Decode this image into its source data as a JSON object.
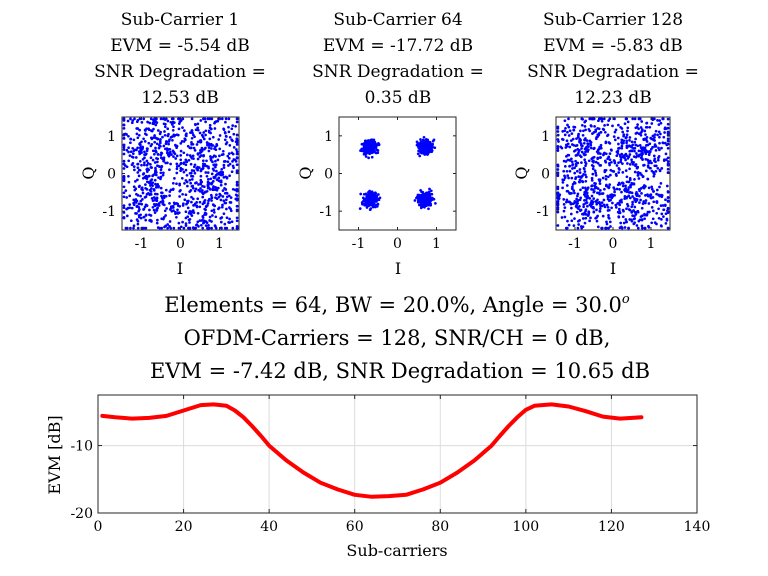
{
  "chart_data": [
    {
      "type": "scatter",
      "panel": "sub-carrier-1",
      "title": [
        "Sub-Carrier 1",
        "EVM = -5.54 dB",
        "SNR Degradation =",
        "12.53 dB"
      ],
      "xlabel": "I",
      "ylabel": "Q",
      "xlim": [
        -1.5,
        1.5
      ],
      "ylim": [
        -1.5,
        1.5
      ],
      "xticks": [
        -1,
        0,
        1
      ],
      "yticks": [
        -1,
        0,
        1
      ],
      "xtick_labels": [
        "-1",
        "0",
        "1"
      ],
      "ytick_labels": [
        "-1",
        "0",
        "1"
      ],
      "constellation": "QPSK",
      "ideal_points": [
        [
          -0.707,
          0.707
        ],
        [
          0.707,
          0.707
        ],
        [
          -0.707,
          -0.707
        ],
        [
          0.707,
          -0.707
        ]
      ],
      "spread": 0.5,
      "num_points": 1024,
      "color": "#0000ff",
      "seed": 11
    },
    {
      "type": "scatter",
      "panel": "sub-carrier-64",
      "title": [
        "Sub-Carrier 64",
        "EVM = -17.72 dB",
        "SNR Degradation =",
        "0.35 dB"
      ],
      "xlabel": "I",
      "ylabel": "Q",
      "xlim": [
        -1.5,
        1.5
      ],
      "ylim": [
        -1.5,
        1.5
      ],
      "xticks": [
        -1,
        0,
        1
      ],
      "yticks": [
        -1,
        0,
        1
      ],
      "xtick_labels": [
        "-1",
        "0",
        "1"
      ],
      "ytick_labels": [
        "-1",
        "0",
        "1"
      ],
      "constellation": "QPSK",
      "ideal_points": [
        [
          -0.707,
          0.707
        ],
        [
          0.707,
          0.707
        ],
        [
          -0.707,
          -0.707
        ],
        [
          0.707,
          -0.707
        ]
      ],
      "spread": 0.09,
      "num_points": 1024,
      "color": "#0000ff",
      "seed": 23
    },
    {
      "type": "scatter",
      "panel": "sub-carrier-128",
      "title": [
        "Sub-Carrier 128",
        "EVM = -5.83 dB",
        "SNR Degradation =",
        "12.23 dB"
      ],
      "xlabel": "I",
      "ylabel": "Q",
      "xlim": [
        -1.5,
        1.5
      ],
      "ylim": [
        -1.5,
        1.5
      ],
      "xticks": [
        -1,
        0,
        1
      ],
      "yticks": [
        -1,
        0,
        1
      ],
      "xtick_labels": [
        "-1",
        "0",
        "1"
      ],
      "ytick_labels": [
        "-1",
        "0",
        "1"
      ],
      "constellation": "QPSK",
      "ideal_points": [
        [
          -0.707,
          0.707
        ],
        [
          0.707,
          0.707
        ],
        [
          -0.707,
          -0.707
        ],
        [
          0.707,
          -0.707
        ]
      ],
      "spread": 0.48,
      "num_points": 1024,
      "color": "#0000ff",
      "seed": 37
    },
    {
      "type": "line",
      "panel": "evm-vs-subcarrier",
      "title": [
        "Elements = 64, BW = 20.0%, Angle = 30.0",
        "OFDM-Carriers = 128, SNR/CH = 0 dB,",
        "EVM = -7.42 dB, SNR Degradation = 10.65 dB"
      ],
      "title_superscript": "o",
      "xlabel": "Sub-carriers",
      "ylabel": "EVM [dB]",
      "xlim": [
        0,
        140
      ],
      "ylim": [
        -20,
        -2.5
      ],
      "xticks": [
        0,
        20,
        40,
        60,
        80,
        100,
        120,
        140
      ],
      "yticks": [
        -20,
        -10
      ],
      "xtick_labels": [
        "0",
        "20",
        "40",
        "60",
        "80",
        "100",
        "120",
        "140"
      ],
      "ytick_labels": [
        "-20",
        "-10"
      ],
      "grid": true,
      "color": "#ff0000",
      "series": [
        {
          "name": "EVM",
          "x": [
            1,
            4,
            8,
            12,
            16,
            20,
            24,
            27,
            30,
            32,
            34,
            36,
            38,
            40,
            44,
            48,
            52,
            56,
            60,
            64,
            68,
            72,
            76,
            80,
            84,
            88,
            92,
            94,
            96,
            98,
            100,
            102,
            106,
            110,
            114,
            118,
            122,
            127
          ],
          "y": [
            -5.6,
            -5.8,
            -6.0,
            -5.9,
            -5.6,
            -4.8,
            -4.0,
            -3.9,
            -4.1,
            -4.8,
            -5.8,
            -7.1,
            -8.5,
            -10.0,
            -12.2,
            -14.0,
            -15.5,
            -16.5,
            -17.3,
            -17.6,
            -17.5,
            -17.3,
            -16.5,
            -15.5,
            -14.0,
            -12.2,
            -10.0,
            -8.5,
            -7.1,
            -5.8,
            -4.7,
            -4.1,
            -3.9,
            -4.2,
            -4.9,
            -5.7,
            -6.0,
            -5.8
          ]
        }
      ]
    }
  ]
}
